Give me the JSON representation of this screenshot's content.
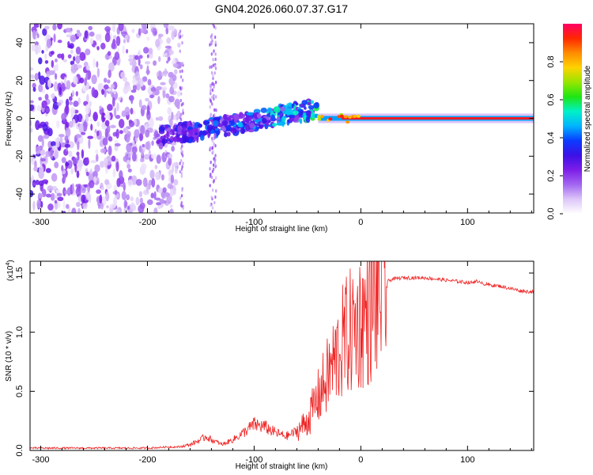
{
  "chart_data": [
    {
      "type": "heatmap",
      "title": "GN04.2026.060.07.37.G17",
      "xlabel": "Height of straight line (km)",
      "ylabel": "Frequency (Hz)",
      "xlim": [
        -310,
        162
      ],
      "ylim": [
        -50,
        50
      ],
      "xticks": [
        -300,
        -200,
        -100,
        0,
        100
      ],
      "xtick_labels": [
        "-300",
        "-200",
        "-100",
        "0",
        "100"
      ],
      "yticks": [
        -40,
        -20,
        0,
        20,
        40
      ],
      "ytick_labels": [
        "-40",
        "-20",
        "0",
        "20",
        "40"
      ],
      "colorbar": {
        "label": "Normalized spectral amplitude",
        "range": [
          0,
          1
        ],
        "ticks": [
          0.0,
          0.2,
          0.4,
          0.6,
          0.8
        ],
        "tick_labels": [
          "0.0",
          "0.2",
          "0.4",
          "0.6",
          "0.8"
        ],
        "colors": [
          "#ffffff",
          "#dcc6f8",
          "#a266f0",
          "#7d1ee8",
          "#3c10e6",
          "#0a3cff",
          "#00b4ff",
          "#00f0c8",
          "#1ee614",
          "#96e600",
          "#ffd200",
          "#ff8c00",
          "#ff2800",
          "#ff0064"
        ]
      },
      "regions": [
        {
          "name": "noise",
          "x_range": [
            -310,
            -170
          ],
          "freq_range": [
            -50,
            50
          ],
          "amplitude": 0.25
        },
        {
          "name": "emerging-trace",
          "x_range": [
            -190,
            -40
          ],
          "freq_start": -10,
          "freq_end": 5,
          "amplitude": 0.4
        },
        {
          "name": "stable-tone",
          "x_range": [
            -40,
            162
          ],
          "frequency": 0,
          "amplitude": 0.95
        }
      ]
    },
    {
      "type": "line",
      "xlabel": "Height of straight line (km)",
      "ylabel": "SNR (10 * v/v)",
      "scale_label_prefix": "(x10",
      "scale_label_exp": "4",
      "scale_label_suffix": ")",
      "xlim": [
        -310,
        162
      ],
      "ylim": [
        0,
        1.6
      ],
      "xticks": [
        -300,
        -200,
        -100,
        0,
        100
      ],
      "xtick_labels": [
        "-300",
        "-200",
        "-100",
        "0",
        "100"
      ],
      "yticks": [
        0.0,
        0.5,
        1.0,
        1.5
      ],
      "ytick_labels": [
        "0.0",
        "0.5",
        "1.0",
        "1.5"
      ],
      "series": [
        {
          "name": "SNR",
          "color": "#ee2222",
          "x": [
            -310,
            -300,
            -280,
            -260,
            -240,
            -220,
            -200,
            -180,
            -170,
            -160,
            -150,
            -145,
            -140,
            -135,
            -130,
            -120,
            -110,
            -100,
            -90,
            -80,
            -70,
            -60,
            -50,
            -45,
            -40,
            -35,
            -30,
            -25,
            -20,
            -15,
            -10,
            -5,
            0,
            5,
            10,
            15,
            20,
            25,
            30,
            40,
            50,
            60,
            70,
            80,
            90,
            100,
            105,
            108,
            110,
            112,
            115,
            120,
            130,
            140,
            150,
            162
          ],
          "y": [
            0.02,
            0.02,
            0.02,
            0.02,
            0.02,
            0.02,
            0.02,
            0.03,
            0.03,
            0.05,
            0.09,
            0.12,
            0.09,
            0.07,
            0.05,
            0.09,
            0.15,
            0.22,
            0.2,
            0.15,
            0.12,
            0.16,
            0.25,
            0.35,
            0.45,
            0.55,
            0.65,
            0.75,
            0.85,
            0.95,
            1.0,
            1.05,
            1.1,
            1.15,
            1.2,
            1.3,
            1.38,
            1.43,
            1.45,
            1.46,
            1.46,
            1.46,
            1.45,
            1.44,
            1.43,
            1.42,
            1.42,
            1.44,
            1.41,
            1.43,
            1.41,
            1.4,
            1.39,
            1.37,
            1.35,
            1.34
          ]
        }
      ]
    }
  ]
}
